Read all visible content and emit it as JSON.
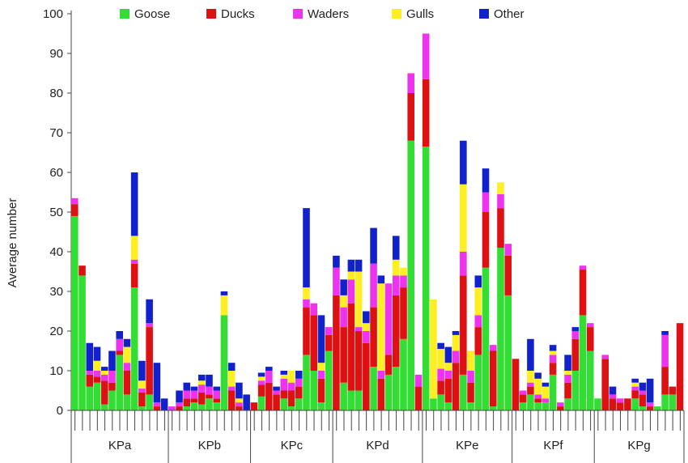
{
  "chart_data": {
    "type": "bar",
    "stacked": true,
    "ylabel": "Average number",
    "ylim": [
      0,
      100
    ],
    "yticks": [
      0,
      10,
      20,
      30,
      40,
      50,
      60,
      70,
      80,
      90,
      100
    ],
    "grid": false,
    "legend_position": "top",
    "colors": {
      "Goose": "#33dd33",
      "Ducks": "#dd1111",
      "Waders": "#ee33ee",
      "Gulls": "#ffee22",
      "Other": "#1122cc"
    },
    "series_order": [
      "Goose",
      "Ducks",
      "Waders",
      "Gulls",
      "Other"
    ],
    "groups": [
      {
        "label": "KPa",
        "bars": [
          [
            49,
            3,
            1.5,
            0,
            0
          ],
          [
            34,
            2.5,
            0,
            0,
            0
          ],
          [
            6,
            3,
            1,
            0,
            7
          ],
          [
            7,
            1.5,
            1.5,
            2.5,
            3.5
          ],
          [
            1.5,
            6,
            1.5,
            1,
            1
          ],
          [
            5,
            2,
            3,
            0,
            5
          ],
          [
            14,
            1,
            3,
            0,
            2
          ],
          [
            4,
            6,
            2,
            4,
            2
          ],
          [
            31,
            6,
            1,
            6,
            16
          ],
          [
            1,
            3.5,
            1,
            2,
            5
          ],
          [
            4,
            17,
            1,
            0,
            6
          ],
          [
            0,
            1,
            1,
            0,
            10
          ],
          [
            0,
            0,
            0,
            0,
            3
          ]
        ]
      },
      {
        "label": "KPb",
        "bars": [
          [
            0,
            0,
            1,
            0,
            0
          ],
          [
            0,
            1,
            1,
            0,
            3
          ],
          [
            1,
            2,
            2,
            0,
            2
          ],
          [
            2,
            1,
            2,
            0,
            1
          ],
          [
            1.5,
            3,
            2,
            1,
            1.5
          ],
          [
            3,
            1,
            2,
            0,
            3
          ],
          [
            2,
            1,
            2,
            0,
            1
          ],
          [
            24,
            0,
            0,
            5,
            1
          ],
          [
            0,
            5,
            1,
            4,
            2
          ],
          [
            0,
            1,
            1,
            1,
            4
          ],
          [
            0,
            0,
            0,
            0,
            4
          ]
        ]
      },
      {
        "label": "KPc",
        "bars": [
          [
            0,
            2,
            0,
            0,
            0
          ],
          [
            3.5,
            3,
            1,
            1,
            1
          ],
          [
            0,
            7,
            3,
            0,
            1
          ],
          [
            0,
            4,
            1,
            0,
            1
          ],
          [
            3,
            2,
            3,
            1,
            1
          ],
          [
            1,
            4,
            2,
            3,
            0
          ],
          [
            3,
            3,
            2,
            0,
            2
          ],
          [
            14,
            12,
            2,
            3,
            20
          ],
          [
            10,
            14,
            3,
            0,
            0
          ],
          [
            2,
            6,
            2,
            2,
            12
          ],
          [
            15,
            4,
            2,
            0,
            0
          ]
        ]
      },
      {
        "label": "KPd",
        "bars": [
          [
            0,
            29,
            7,
            0,
            3
          ],
          [
            7,
            14,
            5,
            3,
            4
          ],
          [
            5,
            22,
            6,
            2,
            3
          ],
          [
            5,
            15,
            1,
            14,
            3
          ],
          [
            0,
            17,
            3,
            2,
            3
          ],
          [
            11,
            15,
            11,
            0,
            9
          ],
          [
            0,
            8,
            2,
            22,
            2
          ],
          [
            9,
            5,
            18,
            0,
            0
          ],
          [
            11,
            18,
            5,
            4,
            6
          ],
          [
            18,
            13,
            3,
            2,
            0
          ],
          [
            68,
            12,
            5,
            0,
            0
          ],
          [
            0,
            6,
            3,
            0,
            0
          ]
        ]
      },
      {
        "label": "KPe",
        "bars": [
          [
            66.5,
            17,
            11.5,
            0,
            0
          ],
          [
            3,
            0,
            0,
            25,
            0
          ],
          [
            4,
            3.5,
            3,
            5,
            1.5
          ],
          [
            2,
            6,
            2,
            2,
            4
          ],
          [
            0,
            12,
            3,
            4,
            1
          ],
          [
            9,
            25,
            6,
            17,
            11
          ],
          [
            2,
            5,
            3,
            5,
            0
          ],
          [
            14,
            7,
            3,
            7,
            3
          ],
          [
            36,
            14,
            5,
            0,
            6
          ],
          [
            1,
            14,
            1.5,
            0,
            0
          ],
          [
            41,
            10,
            3.5,
            3,
            0
          ],
          [
            29,
            10,
            3,
            0,
            0
          ]
        ]
      },
      {
        "label": "KPf",
        "bars": [
          [
            0,
            13,
            0,
            0,
            0
          ],
          [
            2,
            2,
            1,
            0,
            0
          ],
          [
            4,
            2,
            1,
            3,
            8
          ],
          [
            2,
            1,
            1,
            4,
            1.5
          ],
          [
            2,
            0,
            1,
            3,
            1
          ],
          [
            9,
            3,
            2,
            1,
            1.5
          ],
          [
            0,
            1,
            1,
            0,
            0
          ],
          [
            3,
            4,
            2,
            1,
            4
          ],
          [
            10,
            8,
            2,
            0,
            1
          ],
          [
            24,
            11.5,
            1,
            0,
            0
          ],
          [
            15,
            6,
            1,
            0,
            0
          ]
        ]
      },
      {
        "label": "KPg",
        "bars": [
          [
            3,
            0,
            0,
            0,
            0
          ],
          [
            0,
            13,
            1,
            0,
            0
          ],
          [
            0,
            3,
            1,
            0,
            2
          ],
          [
            0,
            2,
            1,
            0,
            0
          ],
          [
            0,
            3,
            0,
            0,
            0
          ],
          [
            3,
            2,
            1,
            1,
            1
          ],
          [
            1,
            3,
            1,
            0,
            2
          ],
          [
            0,
            1,
            1,
            0,
            6
          ],
          [
            1,
            0,
            0,
            0,
            0
          ],
          [
            4,
            7,
            8,
            0,
            1
          ],
          [
            4,
            2,
            0,
            0,
            0
          ],
          [
            0,
            22,
            0,
            0,
            0
          ]
        ]
      }
    ]
  }
}
